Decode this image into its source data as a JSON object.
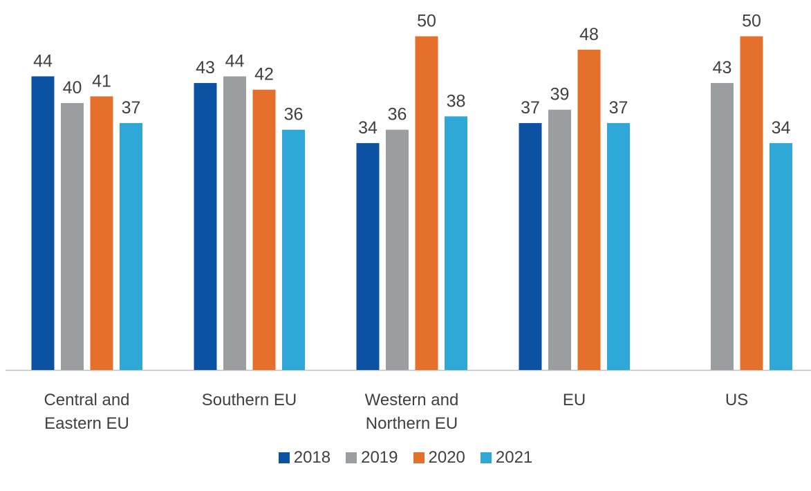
{
  "chart_data": {
    "type": "bar",
    "categories": [
      "Central and Eastern EU",
      "Southern EU",
      "Western and Northern EU",
      "EU",
      "US"
    ],
    "series": [
      {
        "name": "2018",
        "color": "#0b52a3",
        "values": [
          44,
          43,
          34,
          37,
          null
        ]
      },
      {
        "name": "2019",
        "color": "#9b9e9f",
        "values": [
          40,
          44,
          36,
          39,
          43
        ]
      },
      {
        "name": "2020",
        "color": "#e5702b",
        "values": [
          41,
          42,
          50,
          48,
          50
        ]
      },
      {
        "name": "2021",
        "color": "#2fa8d7",
        "values": [
          37,
          36,
          38,
          37,
          34
        ]
      }
    ],
    "legend": "bottom"
  }
}
